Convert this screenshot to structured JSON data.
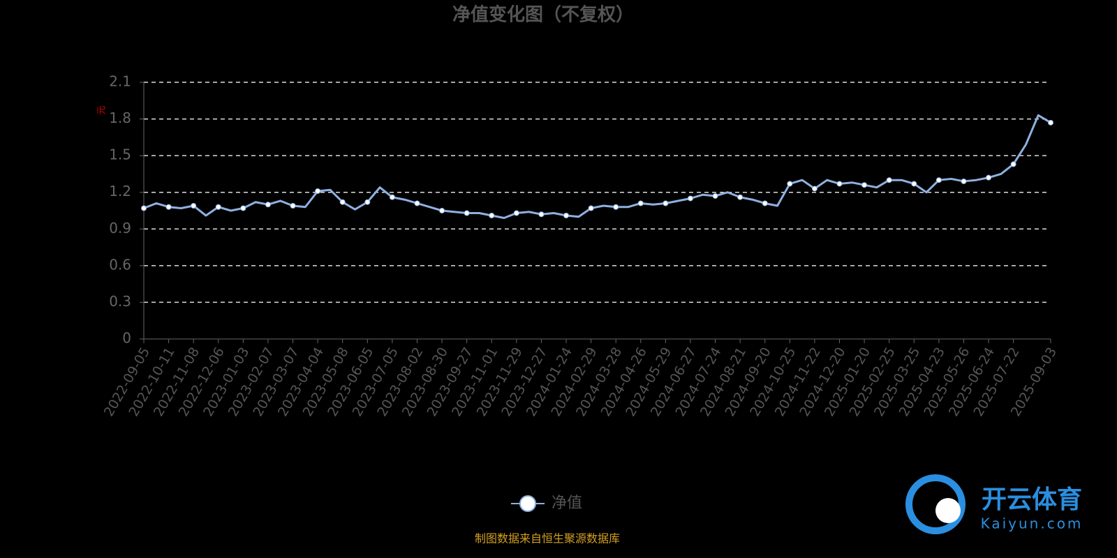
{
  "chart_data": {
    "type": "line",
    "title": "净值变化图（不复权）",
    "y_label": "元",
    "categories": [
      "2022-09-05",
      null,
      "2022-10-11",
      null,
      "2022-11-08",
      null,
      "2022-12-06",
      null,
      "2023-01-03",
      null,
      "2023-02-07",
      null,
      "2023-03-07",
      null,
      "2023-04-04",
      null,
      "2023-05-08",
      null,
      "2023-06-05",
      null,
      "2023-07-05",
      null,
      "2023-08-02",
      null,
      "2023-08-30",
      null,
      "2023-09-27",
      null,
      "2023-11-01",
      null,
      "2023-11-29",
      null,
      "2023-12-27",
      null,
      "2024-01-24",
      null,
      "2024-02-29",
      null,
      "2024-03-28",
      null,
      "2024-04-26",
      null,
      "2024-05-29",
      null,
      "2024-06-27",
      null,
      "2024-07-24",
      null,
      "2024-08-21",
      null,
      "2024-09-20",
      null,
      "2024-10-25",
      null,
      "2024-11-22",
      null,
      "2024-12-20",
      null,
      "2025-01-20",
      null,
      "2025-02-25",
      null,
      "2025-03-25",
      null,
      "2025-04-23",
      null,
      "2025-05-26",
      null,
      "2025-06-24",
      null,
      "2025-07-22",
      null,
      null,
      "2025-09-03"
    ],
    "series": [
      {
        "name": "净值",
        "color": "#8fb0e0",
        "values": [
          1.07,
          1.11,
          1.08,
          1.07,
          1.09,
          1.01,
          1.08,
          1.05,
          1.07,
          1.12,
          1.1,
          1.13,
          1.09,
          1.08,
          1.21,
          1.22,
          1.12,
          1.06,
          1.12,
          1.24,
          1.16,
          1.14,
          1.11,
          1.08,
          1.05,
          1.04,
          1.03,
          1.03,
          1.01,
          0.99,
          1.03,
          1.04,
          1.02,
          1.03,
          1.01,
          1.0,
          1.07,
          1.09,
          1.08,
          1.08,
          1.11,
          1.1,
          1.11,
          1.13,
          1.15,
          1.18,
          1.17,
          1.2,
          1.16,
          1.14,
          1.11,
          1.09,
          1.27,
          1.3,
          1.23,
          1.3,
          1.27,
          1.28,
          1.26,
          1.24,
          1.3,
          1.3,
          1.27,
          1.2,
          1.3,
          1.31,
          1.29,
          1.3,
          1.32,
          1.35,
          1.43,
          1.59,
          1.83,
          1.77
        ]
      }
    ],
    "ylim": [
      0,
      2.1
    ],
    "yticks": [
      0,
      0.3,
      0.6,
      0.9,
      1.2,
      1.5,
      1.8,
      2.1
    ],
    "grid": true,
    "source": "制图数据来自恒生聚源数据库"
  },
  "watermark": {
    "brand": "开云体育",
    "url": "Kaiyun.com"
  }
}
